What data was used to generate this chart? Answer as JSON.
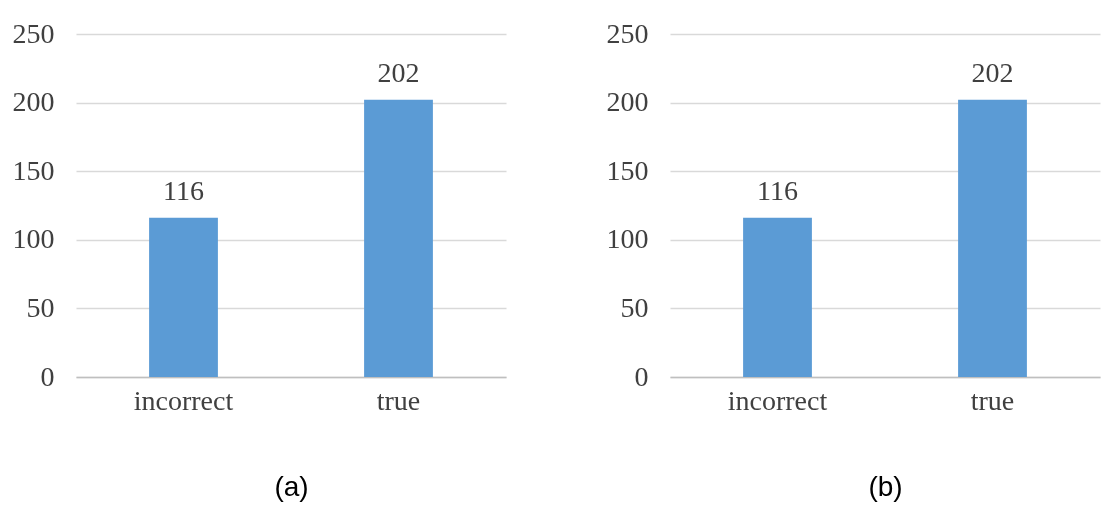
{
  "chart_data": [
    {
      "type": "bar",
      "xlabel": "(a)",
      "categories": [
        "incorrect",
        "true"
      ],
      "values": [
        116,
        202
      ],
      "color": "#5b9bd5",
      "ylim": [
        0,
        250
      ],
      "yticks": [
        0,
        50,
        100,
        150,
        200,
        250
      ],
      "grid": "y",
      "data_labels": true
    },
    {
      "type": "bar",
      "xlabel": "(b)",
      "categories": [
        "incorrect",
        "true"
      ],
      "values": [
        116,
        202
      ],
      "color": "#5b9bd5",
      "ylim": [
        0,
        250
      ],
      "yticks": [
        0,
        50,
        100,
        150,
        200,
        250
      ],
      "grid": "y",
      "data_labels": true
    }
  ]
}
